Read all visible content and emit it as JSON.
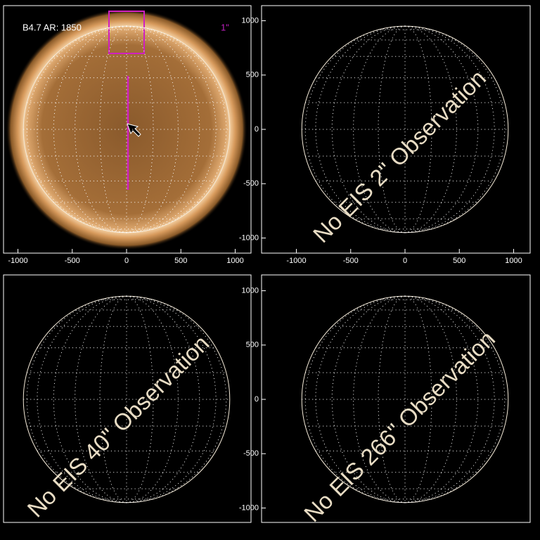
{
  "panels": [
    {
      "annotation": "B4.7 AR: 1850",
      "scale_label": "1\"",
      "xticks": [
        -1000,
        -500,
        0,
        500,
        1000
      ]
    },
    {
      "message": "No EIS 2\" Observation",
      "xticks": [
        -1000,
        -500,
        0,
        500,
        1000
      ],
      "yticks": [
        1000,
        500,
        0,
        -500,
        -1000
      ]
    },
    {
      "message": "No EIS 40\" Observation"
    },
    {
      "message": "No EIS 266\" Observation",
      "yticks": [
        1000,
        500,
        0,
        -500,
        -1000
      ]
    }
  ]
}
